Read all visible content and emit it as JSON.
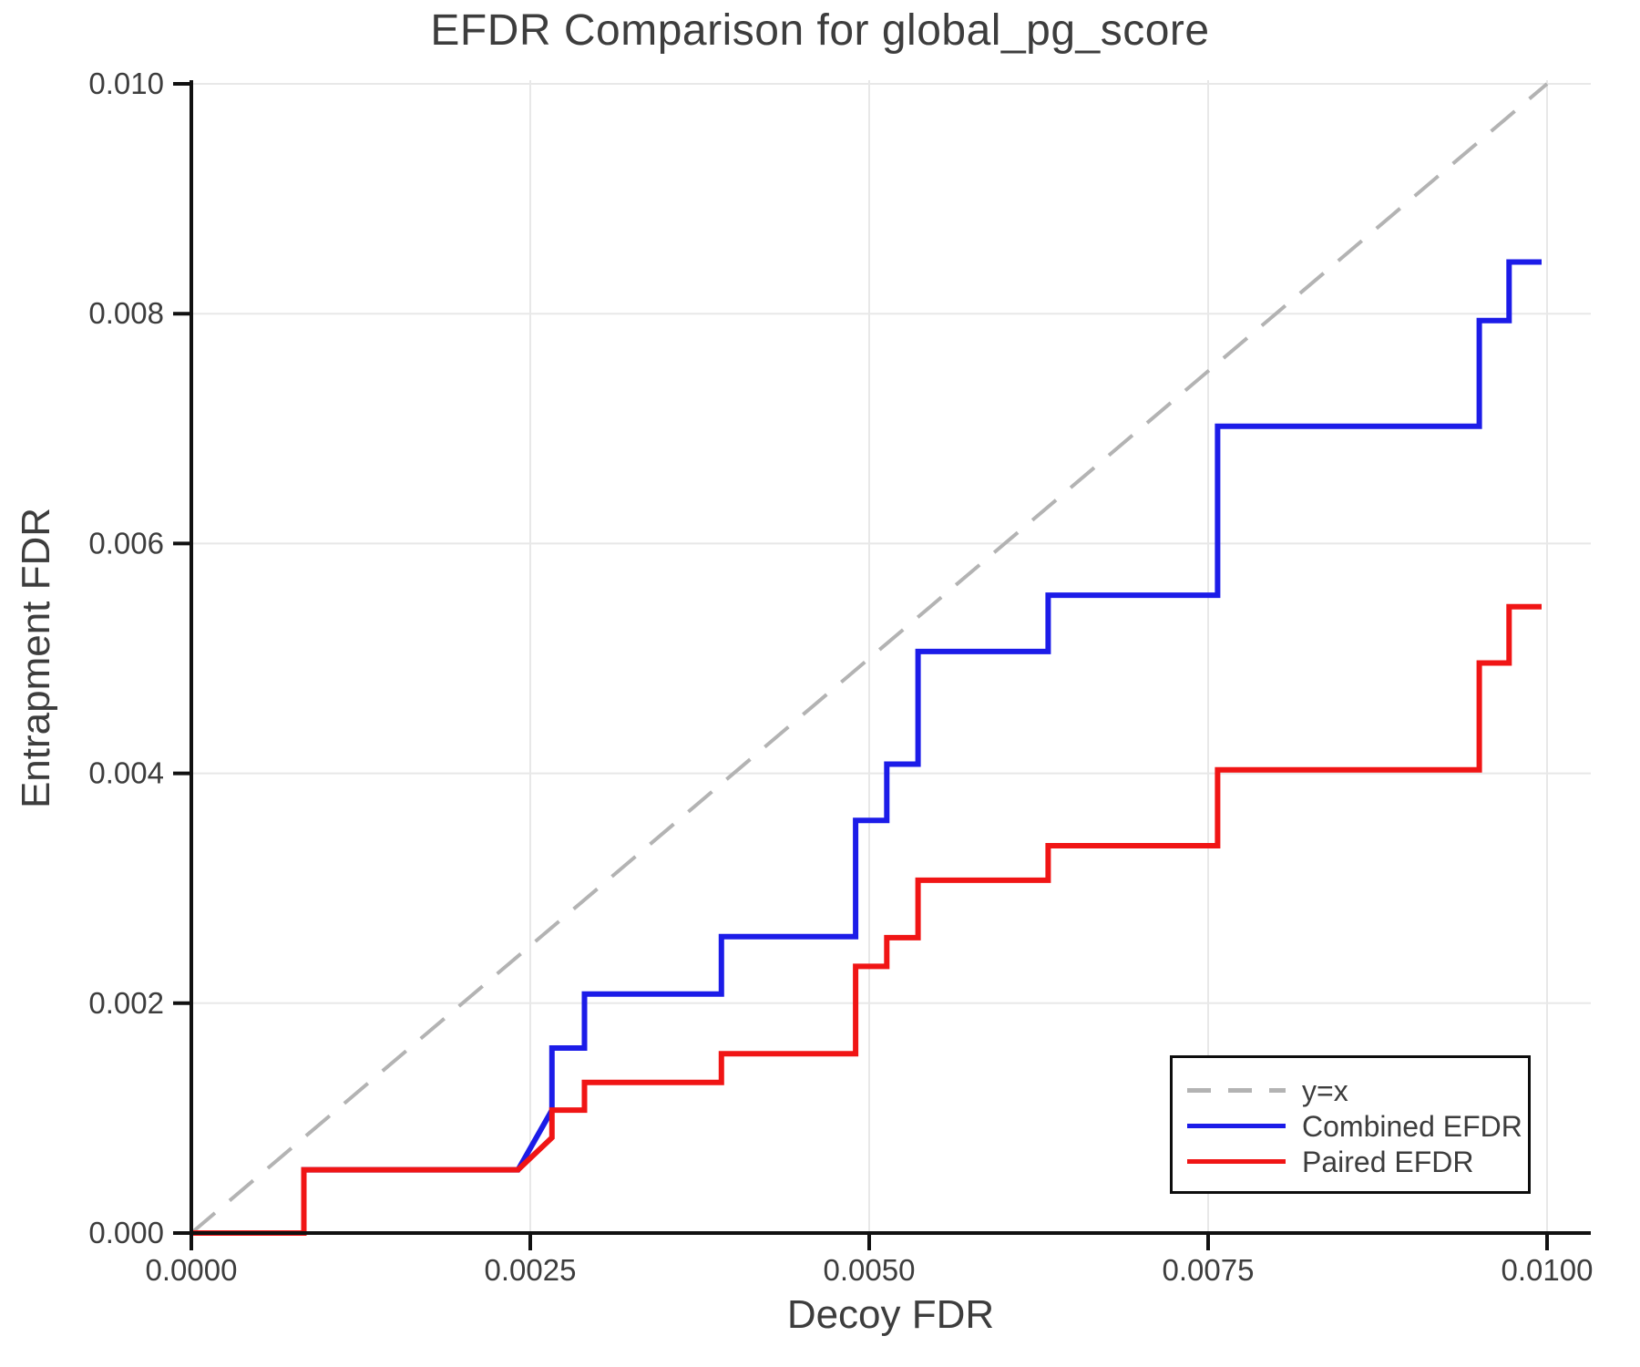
{
  "page": {
    "title": "EFDR Comparison for global_pg_score"
  },
  "chart_data": {
    "type": "line",
    "title": "EFDR Comparison for global_pg_score",
    "xlabel": "Decoy FDR",
    "ylabel": "Entrapment FDR",
    "xlim": [
      0.0,
      0.01
    ],
    "ylim": [
      0.0,
      0.01
    ],
    "grid": true,
    "legend_position": "lower right",
    "x_ticks": {
      "values": [
        0.0,
        0.0025,
        0.005,
        0.0075,
        0.01
      ],
      "labels": [
        "0.0000",
        "0.0025",
        "0.0050",
        "0.0075",
        "0.0100"
      ]
    },
    "y_ticks": {
      "values": [
        0.0,
        0.002,
        0.004,
        0.006,
        0.008,
        0.01
      ],
      "labels": [
        "0.000",
        "0.002",
        "0.004",
        "0.006",
        "0.008",
        "0.010"
      ]
    },
    "colors": {
      "grid": "#e8e8e8",
      "spine": "#111111",
      "text": "#3d3d3d"
    },
    "series": [
      {
        "name": "y=x",
        "color": "#b3b3b3",
        "dash": true,
        "points": [
          [
            0.0,
            0.0
          ],
          [
            0.01,
            0.01
          ]
        ]
      },
      {
        "name": "Combined EFDR",
        "color": "#1c1ce8",
        "dash": false,
        "points": [
          [
            0.0,
            0.0
          ],
          [
            0.00083,
            0.0
          ],
          [
            0.00083,
            0.00055
          ],
          [
            0.00241,
            0.00055
          ],
          [
            0.00266,
            0.00107
          ],
          [
            0.00266,
            0.00161
          ],
          [
            0.0029,
            0.00161
          ],
          [
            0.0029,
            0.00208
          ],
          [
            0.00391,
            0.00208
          ],
          [
            0.00391,
            0.00258
          ],
          [
            0.0049,
            0.00258
          ],
          [
            0.0049,
            0.00359
          ],
          [
            0.00513,
            0.00359
          ],
          [
            0.00513,
            0.00408
          ],
          [
            0.00536,
            0.00408
          ],
          [
            0.00536,
            0.00506
          ],
          [
            0.00632,
            0.00506
          ],
          [
            0.00632,
            0.00555
          ],
          [
            0.00757,
            0.00555
          ],
          [
            0.00757,
            0.00702
          ],
          [
            0.0095,
            0.00702
          ],
          [
            0.0095,
            0.00794
          ],
          [
            0.00972,
            0.00794
          ],
          [
            0.00972,
            0.00845
          ],
          [
            0.00996,
            0.00845
          ]
        ]
      },
      {
        "name": "Paired EFDR",
        "color": "#f01515",
        "dash": false,
        "points": [
          [
            0.0,
            0.0
          ],
          [
            0.00083,
            0.0
          ],
          [
            0.00083,
            0.00055
          ],
          [
            0.00241,
            0.00055
          ],
          [
            0.00266,
            0.00083
          ],
          [
            0.00266,
            0.00107
          ],
          [
            0.0029,
            0.00107
          ],
          [
            0.0029,
            0.00131
          ],
          [
            0.00391,
            0.00131
          ],
          [
            0.00391,
            0.00156
          ],
          [
            0.0049,
            0.00156
          ],
          [
            0.0049,
            0.00232
          ],
          [
            0.00513,
            0.00232
          ],
          [
            0.00513,
            0.00257
          ],
          [
            0.00536,
            0.00257
          ],
          [
            0.00536,
            0.00307
          ],
          [
            0.00632,
            0.00307
          ],
          [
            0.00632,
            0.00337
          ],
          [
            0.00757,
            0.00337
          ],
          [
            0.00757,
            0.00403
          ],
          [
            0.0095,
            0.00403
          ],
          [
            0.0095,
            0.00496
          ],
          [
            0.00972,
            0.00496
          ],
          [
            0.00972,
            0.00545
          ],
          [
            0.00996,
            0.00545
          ]
        ]
      }
    ]
  }
}
